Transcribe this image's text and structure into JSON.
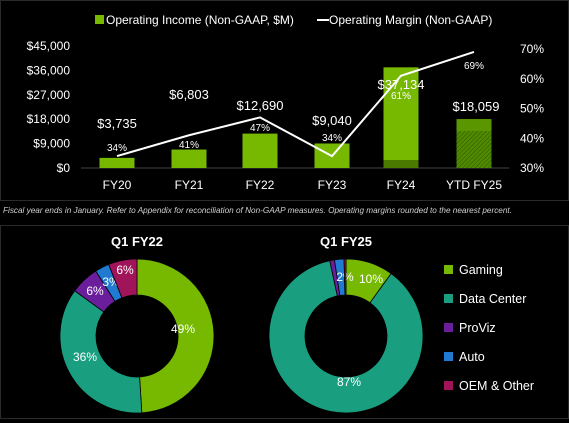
{
  "chart_data": [
    {
      "type": "bar",
      "legend": [
        {
          "label": "Operating Income (Non-GAAP, $M)",
          "color": "#76b900",
          "marker": "square"
        },
        {
          "label": "Operating Margin (Non-GAAP)",
          "color": "#ffffff",
          "marker": "line"
        }
      ],
      "legend_placement": "top-center",
      "categories": [
        "FY20",
        "FY21",
        "FY22",
        "FY23",
        "FY24",
        "YTD FY25"
      ],
      "series": [
        {
          "name": "Operating Income (Non-GAAP, $M)",
          "type": "bar",
          "axis": "left",
          "color": "#76b900",
          "values": [
            3735,
            6803,
            12690,
            9040,
            37134,
            18059
          ],
          "labels": [
            "$3,735",
            "$6,803",
            "$12,690",
            "$9,040",
            "$37,134",
            "$18,059"
          ]
        },
        {
          "name": "Operating Margin (Non-GAAP)",
          "type": "line",
          "axis": "right",
          "color": "#ffffff",
          "values": [
            34,
            41,
            47,
            34,
            61,
            69
          ],
          "labels": [
            "34%",
            "41%",
            "47%",
            "34%",
            "61%",
            "69%"
          ]
        }
      ],
      "y_left": {
        "ylim": [
          0,
          45000
        ],
        "ticks": [
          "$0",
          "$9,000",
          "$18,000",
          "$27,000",
          "$36,000",
          "$45,000"
        ]
      },
      "y_right": {
        "ylim": [
          30,
          70
        ],
        "ticks": [
          "30%",
          "40%",
          "50%",
          "60%",
          "70%"
        ]
      },
      "grid": false
    },
    {
      "type": "pie",
      "variant": "donut",
      "title": "Q1 FY22",
      "slices": [
        {
          "name": "Gaming",
          "value": 49,
          "label": "49%",
          "color": "#76b900"
        },
        {
          "name": "Data Center",
          "value": 36,
          "label": "36%",
          "color": "#1a9e80"
        },
        {
          "name": "ProViz",
          "value": 6,
          "label": "6%",
          "color": "#6a1e9c"
        },
        {
          "name": "Auto",
          "value": 3,
          "label": "3%",
          "color": "#1f7ad0"
        },
        {
          "name": "OEM & Other",
          "value": 6,
          "label": "6%",
          "color": "#a0145a"
        }
      ]
    },
    {
      "type": "pie",
      "variant": "donut",
      "title": "Q1 FY25",
      "slices": [
        {
          "name": "Gaming",
          "value": 10,
          "label": "10%",
          "color": "#76b900"
        },
        {
          "name": "Data Center",
          "value": 87,
          "label": "87%",
          "color": "#1a9e80"
        },
        {
          "name": "ProViz",
          "value": 1,
          "label": "",
          "color": "#6a1e9c"
        },
        {
          "name": "Auto",
          "value": 2,
          "label": "2%",
          "color": "#1f7ad0"
        },
        {
          "name": "OEM & Other",
          "value": 0.4,
          "label": "",
          "color": "#a0145a"
        }
      ]
    }
  ],
  "donut_legend": [
    {
      "label": "Gaming",
      "color": "#76b900"
    },
    {
      "label": "Data Center",
      "color": "#1a9e80"
    },
    {
      "label": "ProViz",
      "color": "#6a1e9c"
    },
    {
      "label": "Auto",
      "color": "#1f7ad0"
    },
    {
      "label": "OEM & Other",
      "color": "#a0145a"
    }
  ],
  "footnote": "Fiscal year ends in January. Refer to Appendix for reconciliation of Non-GAAP measures. Operating margins rounded to the nearest percent."
}
